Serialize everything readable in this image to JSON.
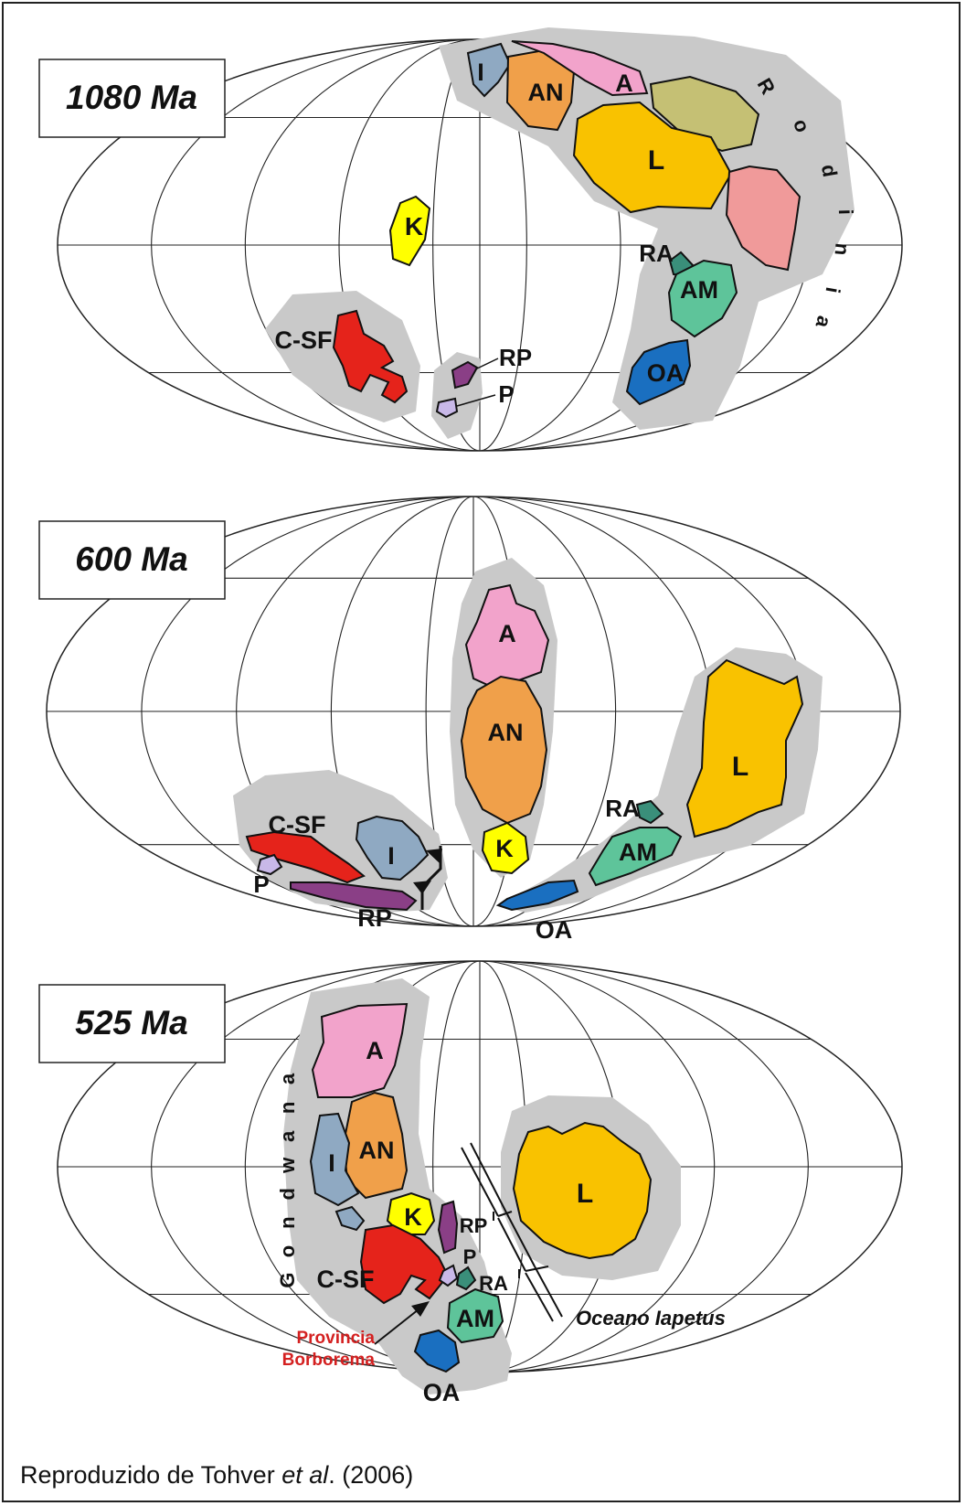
{
  "panels": [
    {
      "title": "1080 Ma",
      "labels": {
        "I": "I",
        "AN": "AN",
        "A": "A",
        "L": "L",
        "K": "K",
        "RA": "RA",
        "AM": "AM",
        "C_SF": "C-SF",
        "RP": "RP",
        "P": "P",
        "OA": "OA"
      },
      "supercontinent": "Rodinia"
    },
    {
      "title": "600 Ma",
      "labels": {
        "A": "A",
        "AN": "AN",
        "K": "K",
        "L": "L",
        "RA": "RA",
        "AM": "AM",
        "OA": "OA",
        "C_SF": "C-SF",
        "I": "I",
        "P": "P",
        "RP": "RP"
      }
    },
    {
      "title": "525 Ma",
      "labels": {
        "A": "A",
        "AN": "AN",
        "I": "I",
        "K": "K",
        "RP": "RP",
        "P": "P",
        "RA": "RA",
        "C_SF": "C-SF",
        "AM": "AM",
        "OA": "OA",
        "L": "L"
      },
      "supercontinent": "Gondwana",
      "ocean": "Oceano Iapetus",
      "province": [
        "Provincia",
        "Borborema"
      ]
    }
  ],
  "caption": {
    "prefix": "Reproduzido  de Tohver ",
    "italic": "et al",
    "suffix": ". (2006)"
  },
  "colors": {
    "I": "#8fa9c2",
    "AN": "#f0a04a",
    "A": "#f2a3cb",
    "L": "#f9c200",
    "K": "#ffff00",
    "RA": "#3a8f7a",
    "AM": "#5ec49a",
    "C-SF": "#e5231b",
    "RP": "#8a3f86",
    "P": "#c8b8e8",
    "OA": "#1a6fc0",
    "olive": "#c5c074",
    "rose": "#f09a9a",
    "halo": "#c9c9c9",
    "province_text": "#d42020"
  }
}
